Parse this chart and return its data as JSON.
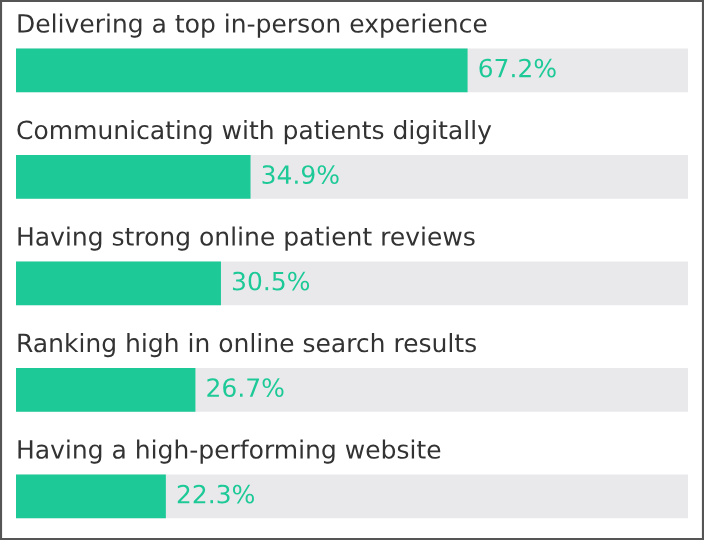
{
  "chart_data": {
    "type": "bar",
    "orientation": "horizontal",
    "categories": [
      "Delivering a top in-person experience",
      "Communicating with patients digitally",
      "Having strong online patient reviews",
      "Ranking high in online search results",
      "Having a high-performing website"
    ],
    "values": [
      67.2,
      34.9,
      30.5,
      26.7,
      22.3
    ],
    "color": "#1ec998",
    "value_labels": [
      "67.2%",
      "34.9%",
      "30.5%",
      "26.7%",
      "22.3%"
    ],
    "xlim": [
      0,
      100
    ]
  }
}
